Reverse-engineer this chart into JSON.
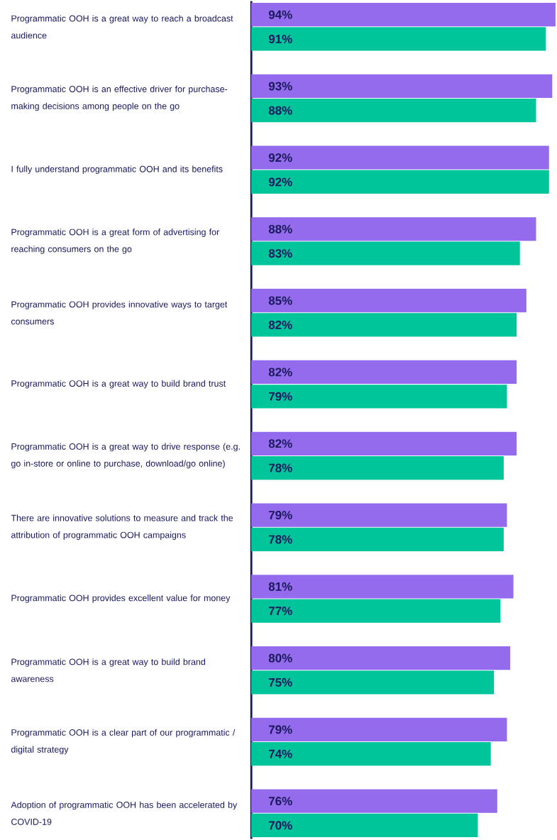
{
  "chart_data": {
    "type": "bar",
    "orientation": "horizontal",
    "categories": [
      "Programmatic OOH is a great way to reach a broadcast audience",
      "Programmatic OOH is an effective driver for purchase-making decisions among people on the go",
      "I fully understand programmatic OOH and its benefits",
      "Programmatic OOH is a great form of advertising for reaching consumers on the go",
      "Programmatic OOH provides innovative ways to target consumers",
      "Programmatic OOH is a great way to build brand trust",
      "Programmatic OOH is a great way to drive response (e.g. go in-store or online to purchase, download/go online)",
      "There are innovative solutions to measure and track the attribution of programmatic OOH campaigns",
      "Programmatic OOH provides excellent value for money",
      "Programmatic OOH is a great way to build brand awareness",
      "Programmatic OOH is a clear part of our programmatic / digital strategy",
      "Adoption of programmatic OOH has been accelerated by COVID-19"
    ],
    "series": [
      {
        "color": "#936bec",
        "values": [
          94,
          93,
          92,
          88,
          85,
          82,
          82,
          79,
          81,
          80,
          79,
          76
        ],
        "value_labels": [
          "94%",
          "93%",
          "92%",
          "88%",
          "85%",
          "82%",
          "82%",
          "79%",
          "81%",
          "80%",
          "79%",
          "76%"
        ]
      },
      {
        "color": "#00c49a",
        "values": [
          91,
          88,
          92,
          83,
          82,
          79,
          78,
          78,
          77,
          75,
          74,
          70
        ],
        "value_labels": [
          "91%",
          "88%",
          "92%",
          "83%",
          "82%",
          "79%",
          "78%",
          "78%",
          "77%",
          "75%",
          "74%",
          "70%"
        ]
      }
    ]
  }
}
